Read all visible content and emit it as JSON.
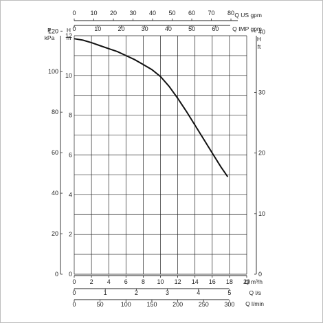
{
  "chart_data": {
    "type": "line",
    "title": "",
    "axes": {
      "h_m": {
        "unit_line1": "H",
        "unit_line2": "m",
        "range": [
          0,
          12
        ],
        "ticks": [
          0,
          2,
          4,
          6,
          8,
          10,
          12
        ]
      },
      "p_kpa": {
        "unit_line1": "P",
        "unit_line2": "kPa",
        "range": [
          0,
          117.72
        ],
        "ticks": [
          0,
          20,
          40,
          60,
          80,
          100,
          120
        ]
      },
      "h_ft": {
        "unit_line1": "H",
        "unit_line2": "ft",
        "range": [
          0,
          39.37
        ],
        "ticks": [
          0,
          10,
          20,
          30,
          40
        ]
      },
      "q_m3h": {
        "unit": "Q m³/h",
        "range": [
          0,
          20
        ],
        "ticks": [
          0,
          2,
          4,
          6,
          8,
          10,
          12,
          14,
          16,
          18,
          20
        ]
      },
      "q_ls": {
        "unit": "Q l/s",
        "range": [
          0,
          5.556
        ],
        "ticks": [
          0,
          1,
          2,
          3,
          4,
          5
        ]
      },
      "q_lmin": {
        "unit": "Q l/min",
        "range": [
          0,
          333.3
        ],
        "ticks": [
          0,
          50,
          100,
          150,
          200,
          250,
          300
        ]
      },
      "q_usgpm": {
        "unit": "Q US gpm",
        "range": [
          0,
          88.06
        ],
        "ticks": [
          0,
          10,
          20,
          30,
          40,
          50,
          60,
          70,
          80
        ]
      },
      "q_impgpm": {
        "unit": "Q IMP gpm",
        "range": [
          0,
          73.33
        ],
        "ticks": [
          0,
          10,
          20,
          30,
          40,
          50,
          60
        ]
      }
    },
    "grid": true,
    "grid_cols": 10,
    "grid_rows": 12,
    "series": [
      {
        "x": [
          0,
          1,
          2,
          3,
          4,
          5,
          6,
          7,
          8,
          9,
          10,
          11,
          12,
          13,
          14,
          15,
          16,
          17,
          17.8
        ],
        "y": [
          11.85,
          11.78,
          11.65,
          11.5,
          11.35,
          11.2,
          11.0,
          10.8,
          10.55,
          10.3,
          9.95,
          9.45,
          8.85,
          8.2,
          7.5,
          6.8,
          6.1,
          5.4,
          4.9
        ]
      }
    ]
  }
}
